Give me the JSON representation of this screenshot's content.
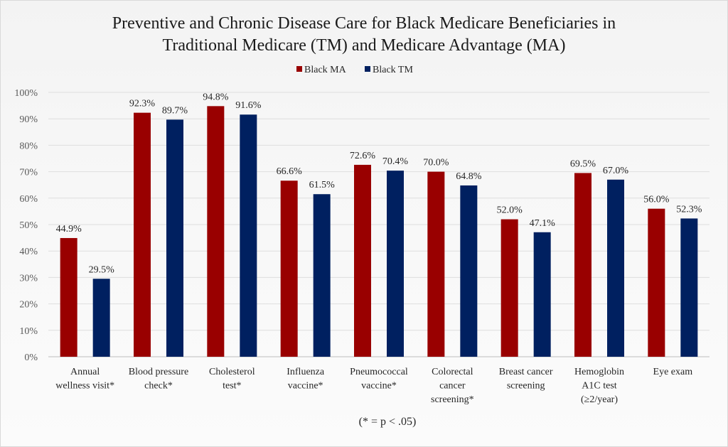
{
  "chart_data": {
    "type": "bar",
    "title_lines": [
      "Preventive and Chronic Disease Care for Black Medicare Beneficiaries in",
      "Traditional Medicare (TM) and Medicare Advantage (MA)"
    ],
    "categories": [
      [
        "Annual",
        "wellness visit*"
      ],
      [
        "Blood pressure",
        "check*"
      ],
      [
        "Cholesterol",
        "test*"
      ],
      [
        "Influenza",
        "vaccine*"
      ],
      [
        "Pneumococcal",
        "vaccine*"
      ],
      [
        "Colorectal",
        "cancer",
        "screening*"
      ],
      [
        "Breast cancer",
        "screening"
      ],
      [
        "Hemoglobin",
        "A1C test",
        "(≥2/year)"
      ],
      [
        "Eye exam"
      ]
    ],
    "series": [
      {
        "name": "Black MA",
        "color": "#990000",
        "values": [
          44.9,
          92.3,
          94.8,
          66.6,
          72.6,
          70.0,
          52.0,
          69.5,
          56.0
        ]
      },
      {
        "name": "Black TM",
        "color": "#002060",
        "values": [
          29.5,
          89.7,
          91.6,
          61.5,
          70.4,
          64.8,
          47.1,
          67.0,
          52.3
        ]
      }
    ],
    "xlabel": "",
    "ylabel": "",
    "ylim": [
      0,
      100
    ],
    "yticks": [
      0,
      10,
      20,
      30,
      40,
      50,
      60,
      70,
      80,
      90,
      100
    ],
    "ytick_format": "percent",
    "data_label_format": "percent-1dp",
    "grid": true,
    "legend_position": "top-center",
    "footnote": "(* = p < .05)"
  }
}
